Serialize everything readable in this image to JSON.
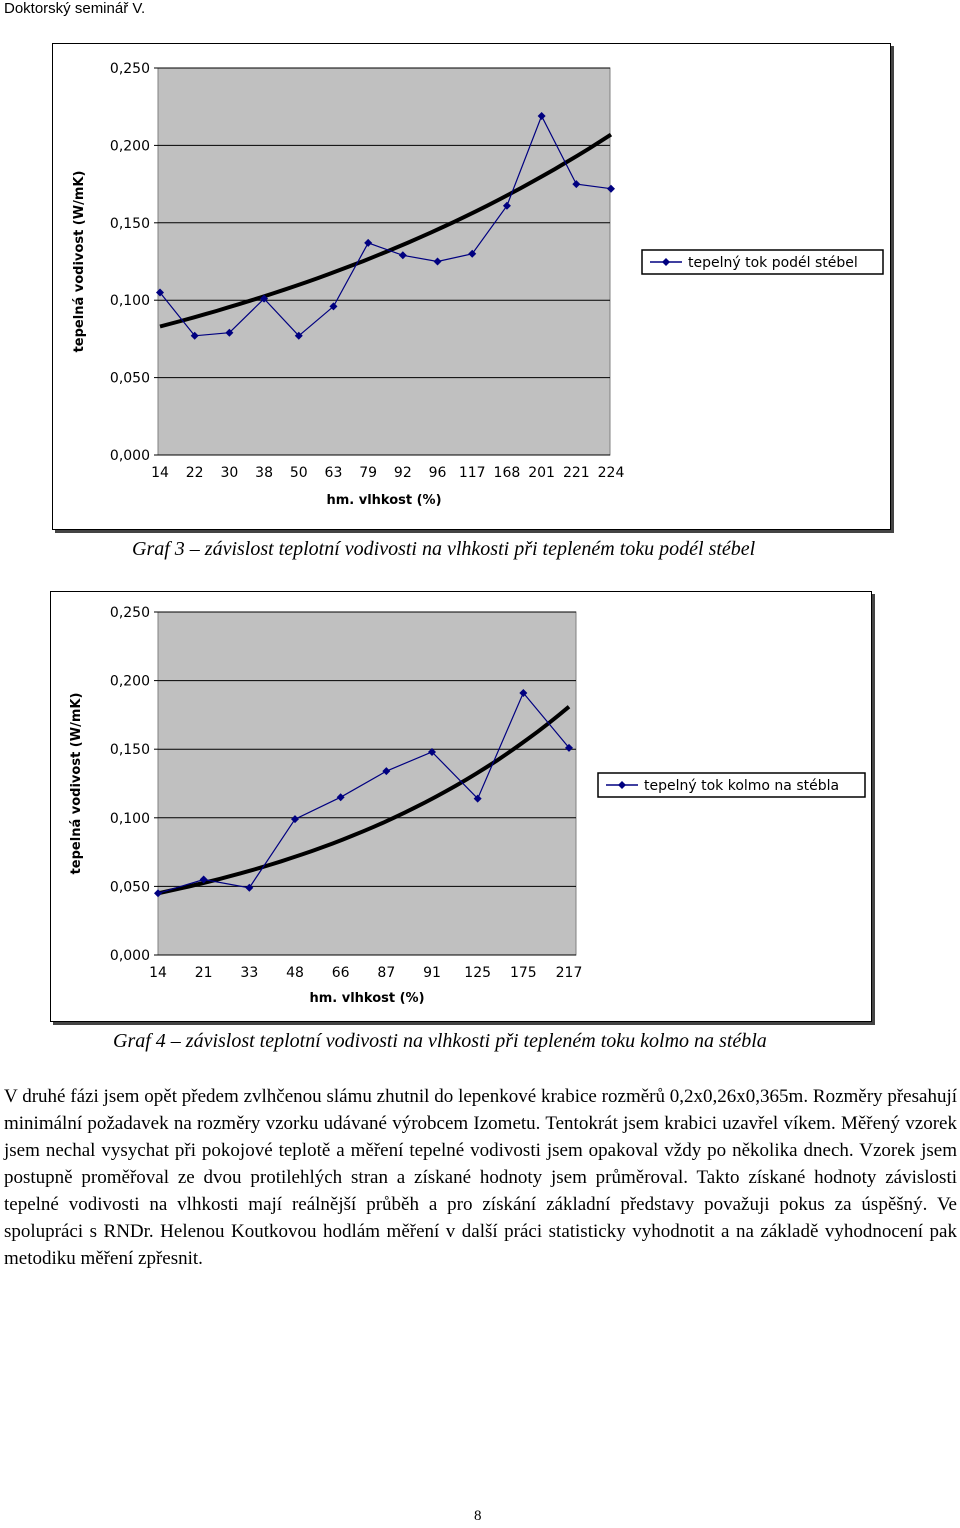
{
  "header": {
    "running_title": "Doktorský seminář V."
  },
  "figures": [
    {
      "caption": "Graf 3 – závislost teplotní vodivosti na vlhkosti při tepleném toku podél stébel"
    },
    {
      "caption": "Graf 4 – závislost teplotní vodivosti na vlhkosti při tepleném toku kolmo na stébla"
    }
  ],
  "body": {
    "paragraph": "V druhé fázi jsem opět předem zvlhčenou slámu zhutnil do lepenkové krabice rozměrů 0,2x0,26x0,365m. Rozměry přesahují minimální požadavek na rozměry vzorku udávané výrobcem Izometu. Tentokrát jsem krabici uzavřel víkem. Měřený vzorek jsem nechal vysychat při pokojové teplotě a měření tepelné vodivosti jsem opakoval vždy po několika dnech. Vzorek jsem postupně proměřoval ze dvou protilehlých stran a získané hodnoty jsem průměroval. Takto získané hodnoty závislosti tepelné vodivosti na vlhkosti mají reálnější průběh a pro získání základní představy považuji pokus za úspěšný. Ve spolupráci s RNDr. Helenou Koutkovou hodlám měření v další práci statisticky vyhodnotit a na základě vyhodnocení pak metodiku měření zpřesnit."
  },
  "page_number": "8",
  "colors": {
    "plot_background": "#c0c0c0",
    "series_line": "#000080",
    "trend_line": "#000000"
  },
  "chart_data": [
    {
      "type": "line",
      "categories": [
        "14",
        "22",
        "30",
        "38",
        "50",
        "63",
        "79",
        "92",
        "96",
        "117",
        "168",
        "201",
        "221",
        "224"
      ],
      "series": [
        {
          "name": "tepelný tok podél stébel",
          "values": [
            0.105,
            0.077,
            0.079,
            0.101,
            0.077,
            0.096,
            0.137,
            0.129,
            0.125,
            0.13,
            0.161,
            0.219,
            0.175,
            0.172
          ]
        }
      ],
      "trendline": {
        "kind": "exponential",
        "start": 0.083,
        "end": 0.207
      },
      "xlabel": "hm. vlhkost (%)",
      "ylabel": "tepelná vodivost (W/mK)",
      "yticks": [
        "0,000",
        "0,050",
        "0,100",
        "0,150",
        "0,200",
        "0,250"
      ],
      "ylim": [
        0,
        0.25
      ],
      "grid": true,
      "legend": "right"
    },
    {
      "type": "line",
      "categories": [
        "14",
        "21",
        "33",
        "48",
        "66",
        "87",
        "91",
        "125",
        "175",
        "217"
      ],
      "series": [
        {
          "name": "tepelný tok kolmo na stébla",
          "values": [
            0.045,
            0.055,
            0.049,
            0.099,
            0.115,
            0.134,
            0.148,
            0.114,
            0.191,
            0.151
          ]
        }
      ],
      "trendline": {
        "kind": "exponential",
        "start": 0.045,
        "end": 0.181
      },
      "xlabel": "hm. vlhkost (%)",
      "ylabel": "tepelná vodivost (W/mK)",
      "yticks": [
        "0,000",
        "0,050",
        "0,100",
        "0,150",
        "0,200",
        "0,250"
      ],
      "ylim": [
        0,
        0.25
      ],
      "grid": true,
      "legend": "right"
    }
  ]
}
